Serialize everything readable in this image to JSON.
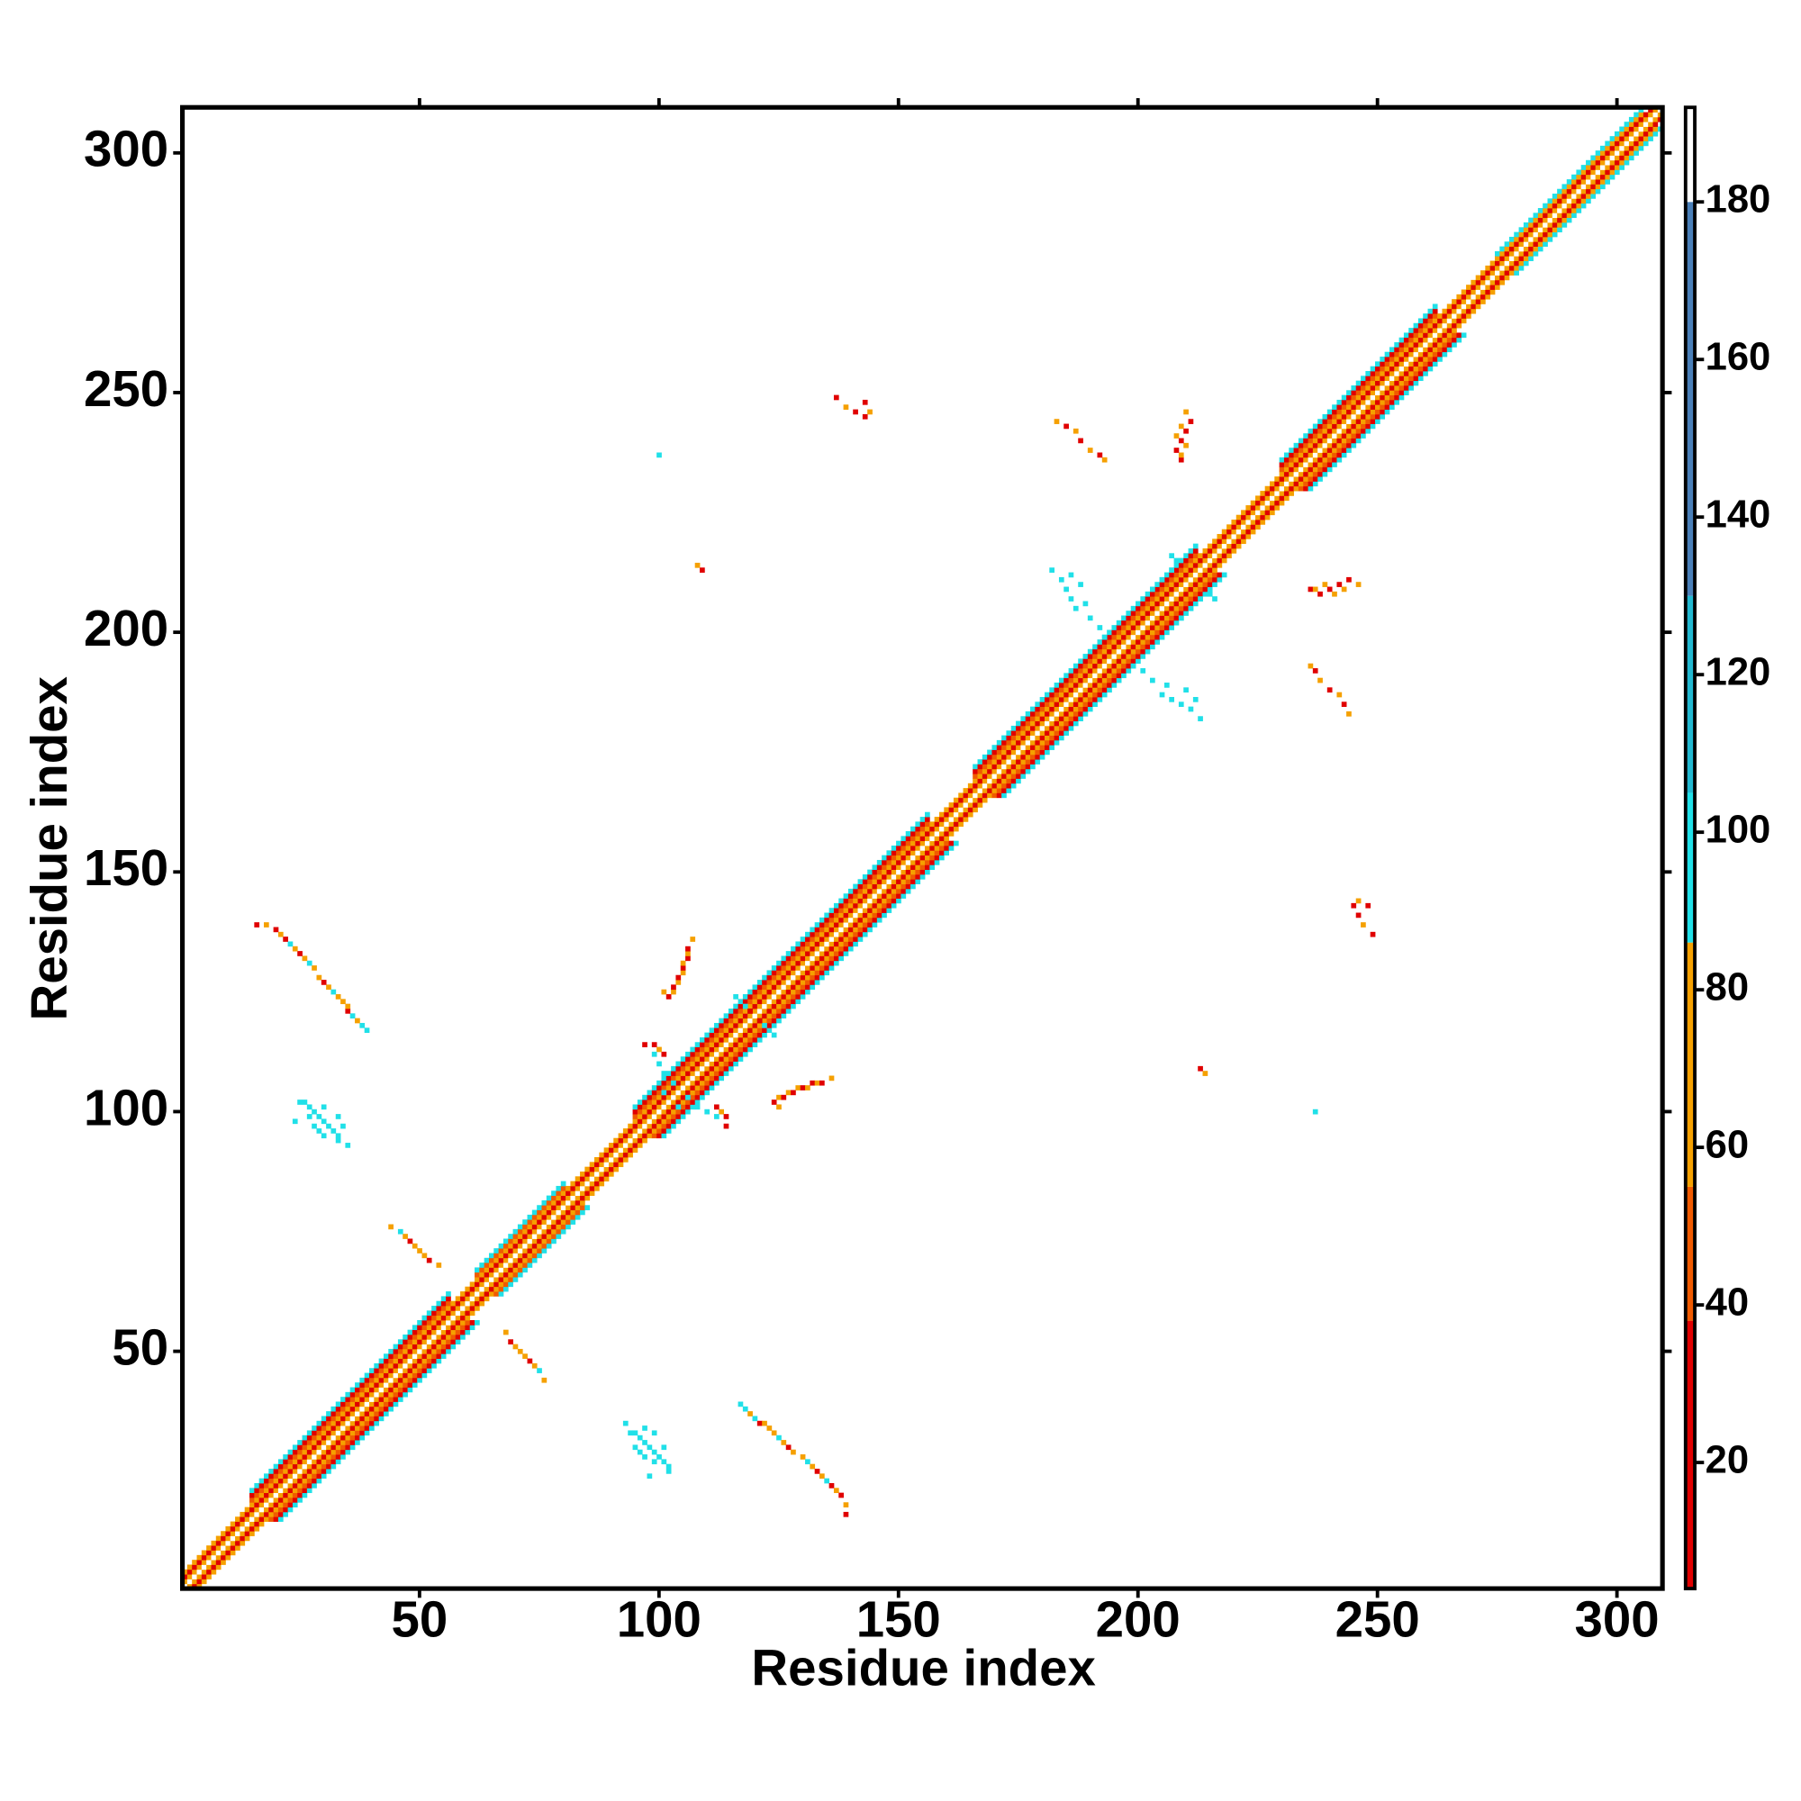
{
  "chart_data": {
    "type": "heatmap",
    "x_label": "Residue index",
    "y_label": "Residue index",
    "xlim": [
      0.5,
      309.5
    ],
    "ylim": [
      0.5,
      309.5
    ],
    "xticks": [
      50,
      100,
      150,
      200,
      250,
      300
    ],
    "yticks": [
      50,
      100,
      150,
      200,
      250,
      300
    ],
    "symmetric": true,
    "clim": [
      4,
      192
    ],
    "cticks": [
      20,
      40,
      60,
      80,
      100,
      120,
      140,
      160,
      180
    ],
    "colorscale": [
      {
        "to": 38,
        "color": "#e00000"
      },
      {
        "to": 55,
        "color": "#f05a00"
      },
      {
        "to": 86,
        "color": "#f5a000"
      },
      {
        "to": 105,
        "color": "#20e0e8"
      },
      {
        "to": 130,
        "color": "#22b8d0"
      },
      {
        "to": 180,
        "color": "#4a7fb8"
      },
      {
        "to": 192,
        "color": "#ffffff"
      }
    ],
    "band": [
      {
        "from": 1,
        "to": 14,
        "profile": [
          190,
          70,
          10,
          70
        ]
      },
      {
        "from": 15,
        "to": 56,
        "profile": [
          190,
          70,
          10,
          70,
          50,
          10,
          100
        ]
      },
      {
        "from": 57,
        "to": 61,
        "profile": [
          190,
          70,
          10,
          70
        ]
      },
      {
        "from": 62,
        "to": 80,
        "profile": [
          190,
          70,
          10,
          70,
          50,
          100
        ]
      },
      {
        "from": 81,
        "to": 94,
        "profile": [
          190,
          70,
          10,
          70
        ]
      },
      {
        "from": 95,
        "to": 156,
        "profile": [
          190,
          70,
          10,
          70,
          50,
          10,
          100
        ]
      },
      {
        "from": 157,
        "to": 165,
        "profile": [
          190,
          70,
          10,
          70
        ]
      },
      {
        "from": 166,
        "to": 212,
        "profile": [
          190,
          70,
          10,
          70,
          50,
          10,
          100
        ]
      },
      {
        "from": 213,
        "to": 229,
        "profile": [
          190,
          70,
          10,
          70
        ]
      },
      {
        "from": 230,
        "to": 262,
        "profile": [
          190,
          70,
          10,
          70,
          50,
          10,
          100
        ]
      },
      {
        "from": 263,
        "to": 274,
        "profile": [
          190,
          70,
          10,
          70
        ]
      },
      {
        "from": 275,
        "to": 305,
        "profile": [
          190,
          70,
          10,
          70,
          100
        ]
      },
      {
        "from": 306,
        "to": 309,
        "profile": [
          190,
          70,
          10
        ]
      }
    ],
    "cells": [
      [
        117,
        39,
        100
      ],
      [
        118,
        38,
        100
      ],
      [
        119,
        37,
        70
      ],
      [
        120,
        36,
        100
      ],
      [
        121,
        35,
        10
      ],
      [
        122,
        35,
        70
      ],
      [
        123,
        34,
        70
      ],
      [
        124,
        33,
        70
      ],
      [
        125,
        32,
        100
      ],
      [
        126,
        31,
        70
      ],
      [
        127,
        30,
        10
      ],
      [
        128,
        29,
        70
      ],
      [
        130,
        28,
        70
      ],
      [
        131,
        27,
        100
      ],
      [
        132,
        26,
        70
      ],
      [
        133,
        25,
        10
      ],
      [
        134,
        24,
        70
      ],
      [
        135,
        23,
        100
      ],
      [
        136,
        22,
        10
      ],
      [
        137,
        21,
        70
      ],
      [
        138,
        20,
        10
      ],
      [
        139,
        18,
        70
      ],
      [
        139,
        16,
        10
      ],
      [
        93,
        35,
        100
      ],
      [
        94,
        33,
        100
      ],
      [
        95,
        33,
        100
      ],
      [
        96,
        32,
        100
      ],
      [
        97,
        31,
        100
      ],
      [
        98,
        30,
        100
      ],
      [
        99,
        29,
        100
      ],
      [
        100,
        28,
        100
      ],
      [
        101,
        27,
        100
      ],
      [
        102,
        26,
        100
      ],
      [
        97,
        34,
        100
      ],
      [
        99,
        33,
        100
      ],
      [
        101,
        30,
        100
      ],
      [
        95,
        30,
        100
      ],
      [
        96,
        29,
        100
      ],
      [
        97,
        28,
        100
      ],
      [
        99,
        27,
        100
      ],
      [
        98,
        24,
        100
      ],
      [
        102,
        25,
        100
      ],
      [
        68,
        54,
        70
      ],
      [
        69,
        52,
        10
      ],
      [
        70,
        51,
        70
      ],
      [
        71,
        50,
        70
      ],
      [
        72,
        49,
        70
      ],
      [
        73,
        48,
        10
      ],
      [
        74,
        47,
        70
      ],
      [
        75,
        46,
        100
      ],
      [
        76,
        44,
        70
      ],
      [
        112,
        101,
        10
      ],
      [
        113,
        100,
        70
      ],
      [
        114,
        99,
        10
      ],
      [
        114,
        97,
        10
      ],
      [
        124,
        102,
        10
      ],
      [
        125,
        103,
        70
      ],
      [
        126,
        103,
        10
      ],
      [
        127,
        104,
        70
      ],
      [
        128,
        104,
        10
      ],
      [
        129,
        105,
        70
      ],
      [
        130,
        105,
        10
      ],
      [
        131,
        105,
        70
      ],
      [
        132,
        106,
        10
      ],
      [
        133,
        106,
        70
      ],
      [
        134,
        106,
        10
      ],
      [
        136,
        107,
        70
      ],
      [
        125,
        101,
        70
      ],
      [
        213,
        109,
        10
      ],
      [
        214,
        108,
        70
      ],
      [
        237,
        100,
        100
      ],
      [
        236,
        193,
        70
      ],
      [
        237,
        192,
        10
      ],
      [
        238,
        190,
        70
      ],
      [
        240,
        188,
        10
      ],
      [
        242,
        187,
        70
      ],
      [
        243,
        185,
        10
      ],
      [
        244,
        183,
        70
      ],
      [
        236,
        209,
        10
      ],
      [
        237,
        209,
        70
      ],
      [
        238,
        208,
        10
      ],
      [
        239,
        210,
        70
      ],
      [
        240,
        209,
        10
      ],
      [
        241,
        208,
        70
      ],
      [
        242,
        210,
        10
      ],
      [
        243,
        209,
        70
      ],
      [
        244,
        211,
        10
      ],
      [
        246,
        210,
        70
      ],
      [
        245,
        143,
        10
      ],
      [
        246,
        141,
        10
      ],
      [
        247,
        139,
        70
      ],
      [
        248,
        143,
        10
      ],
      [
        249,
        137,
        10
      ],
      [
        246,
        144,
        70
      ],
      [
        205,
        187,
        100
      ],
      [
        207,
        186,
        100
      ],
      [
        209,
        185,
        100
      ],
      [
        211,
        184,
        100
      ],
      [
        213,
        182,
        100
      ],
      [
        203,
        190,
        100
      ],
      [
        201,
        192,
        100
      ],
      [
        210,
        188,
        100
      ],
      [
        206,
        189,
        100
      ],
      [
        212,
        186,
        100
      ],
      [
        199,
        193,
        100
      ],
      [
        215,
        208,
        100
      ],
      [
        213,
        207,
        100
      ],
      [
        216,
        207,
        100
      ],
      [
        209,
        203,
        100
      ],
      [
        211,
        205,
        100
      ],
      [
        108,
        101,
        100
      ],
      [
        110,
        100,
        100
      ],
      [
        106,
        103,
        100
      ],
      [
        112,
        99,
        100
      ],
      [
        104,
        101,
        100
      ],
      [
        122,
        118,
        100
      ],
      [
        124,
        116,
        100
      ],
      [
        121,
        119,
        10
      ]
    ]
  }
}
